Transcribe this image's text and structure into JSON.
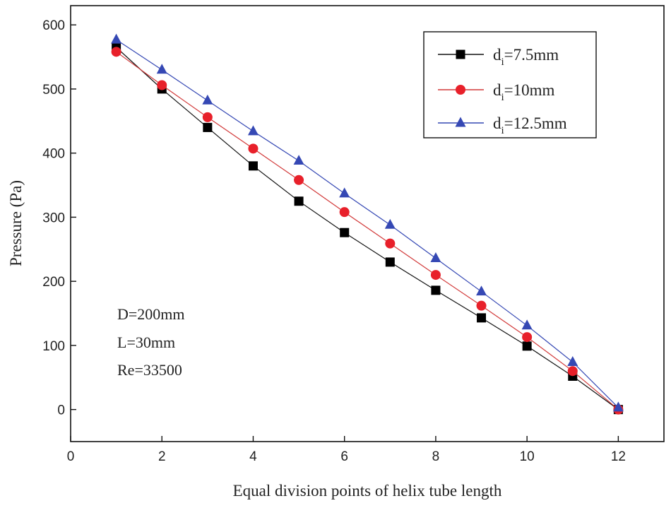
{
  "chart_data": {
    "type": "line",
    "title": "",
    "xlabel": "Equal division points of helix tube length",
    "ylabel": "Pressure (Pa)",
    "xlim": [
      0,
      13
    ],
    "ylim": [
      -50,
      630
    ],
    "xticks": [
      0,
      2,
      4,
      6,
      8,
      10,
      12
    ],
    "yticks": [
      0,
      100,
      200,
      300,
      400,
      500,
      600
    ],
    "grid": false,
    "legend_position": "top-right",
    "x": [
      1,
      2,
      3,
      4,
      5,
      6,
      7,
      8,
      9,
      10,
      11,
      12
    ],
    "series": [
      {
        "name_main": "d",
        "name_sub": "i",
        "name_rest": "=7.5mm",
        "marker": "square",
        "marker_color": "#000000",
        "line_color": "#111111",
        "values": [
          565,
          500,
          440,
          380,
          325,
          276,
          230,
          186,
          143,
          99,
          52,
          0
        ]
      },
      {
        "name_main": "d",
        "name_sub": "i",
        "name_rest": "=10mm",
        "marker": "circle",
        "marker_color": "#e8202a",
        "line_color": "#d23a3a",
        "values": [
          558,
          506,
          456,
          407,
          358,
          308,
          259,
          210,
          162,
          113,
          60,
          0
        ]
      },
      {
        "name_main": "d",
        "name_sub": "i",
        "name_rest": "=12.5mm",
        "marker": "triangle",
        "marker_color": "#3548b4",
        "line_color": "#3548b4",
        "values": [
          577,
          530,
          482,
          434,
          388,
          337,
          288,
          236,
          184,
          131,
          74,
          3
        ]
      }
    ],
    "annotations": [
      "D=200mm",
      "L=30mm",
      "Re=33500"
    ]
  }
}
